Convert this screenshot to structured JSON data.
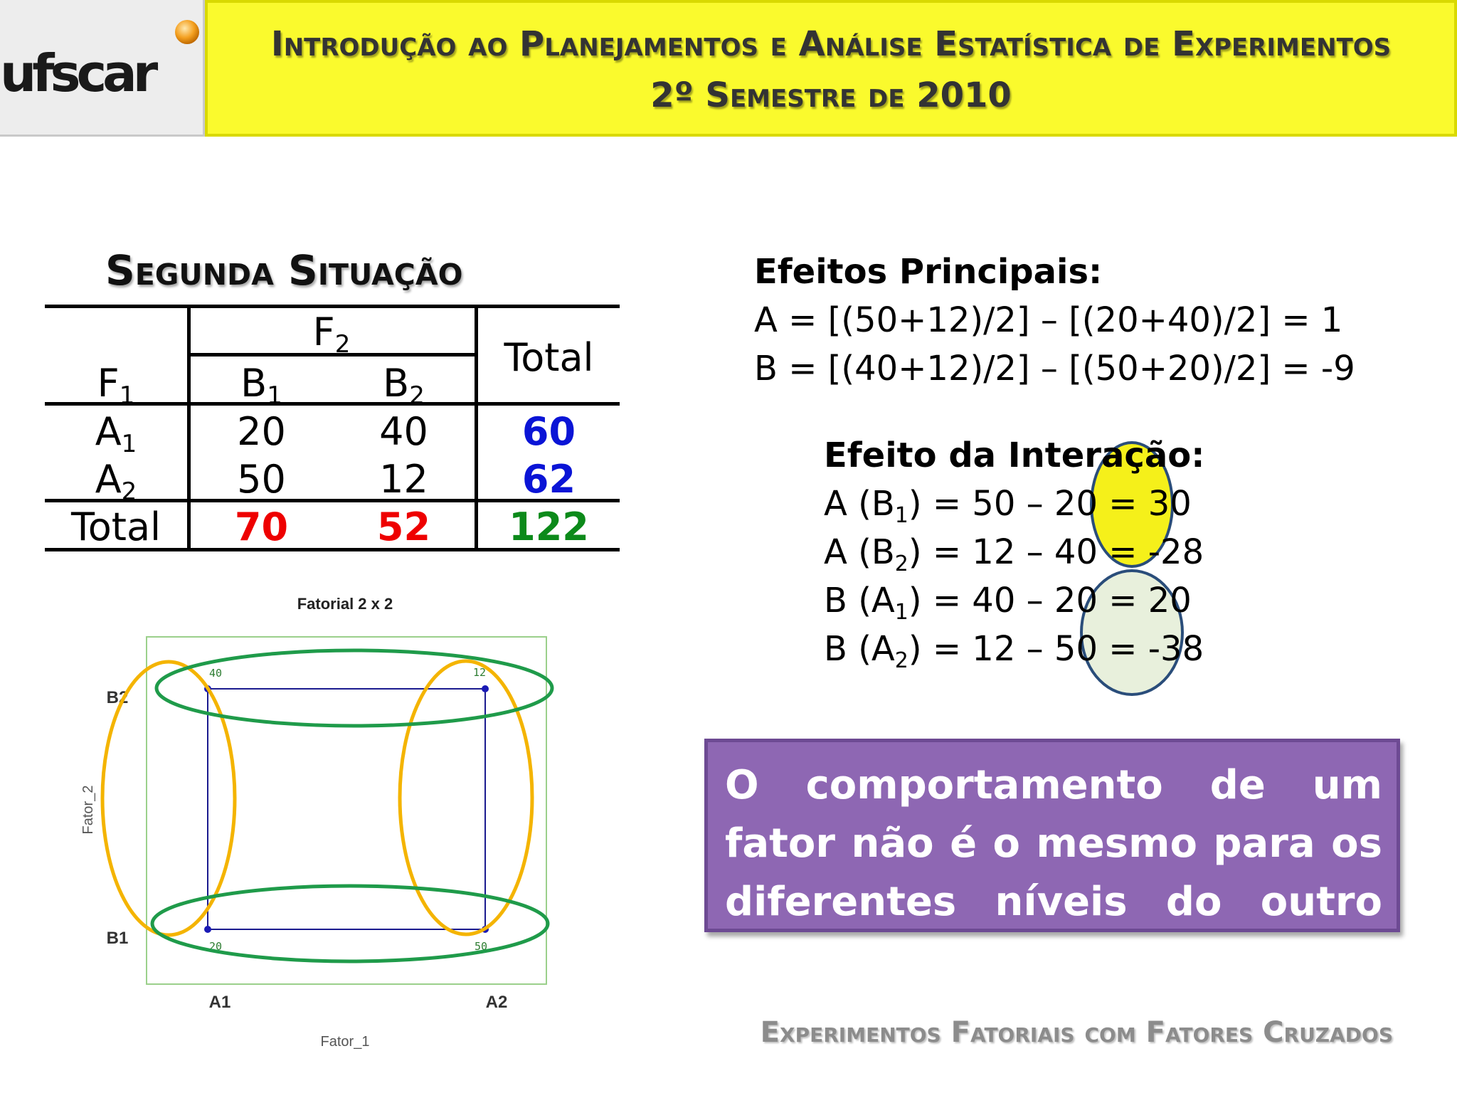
{
  "header": {
    "logo_text": "ufscar",
    "title_line1": "Introdução ao Planejamentos e Análise Estatística de Experimentos",
    "title_line2": "2º Semestre de 2010"
  },
  "section_title": "Segunda Situação",
  "table": {
    "factor2_label": "F",
    "factor2_sub": "2",
    "factor1_label": "F",
    "factor1_sub": "1",
    "total_label": "Total",
    "b1_label": "B",
    "b1_sub": "1",
    "b2_label": "B",
    "b2_sub": "2",
    "a1_label": "A",
    "a1_sub": "1",
    "a2_label": "A",
    "a2_sub": "2",
    "a1_b1": "20",
    "a1_b2": "40",
    "a1_total": "60",
    "a2_b1": "50",
    "a2_b2": "12",
    "a2_total": "62",
    "total_row_label": "Total",
    "total_b1": "70",
    "total_b2": "52",
    "grand_total": "122"
  },
  "main_effects": {
    "heading": "Efeitos Principais:",
    "line_a": "A = [(50+12)/2] – [(20+40)/2] = 1",
    "line_b": "B = [(40+12)/2] – [(50+20)/2] = -9"
  },
  "interaction": {
    "heading": "Efeito da Interação:",
    "rows": [
      {
        "pre": "A (B",
        "sub": "1",
        "post": ") = 50 – 20 = 30"
      },
      {
        "pre": "A (B",
        "sub": "2",
        "post": ") = 12 – 40 = -28"
      },
      {
        "pre": "B (A",
        "sub": "1",
        "post": ") = 40 – 20 = 20"
      },
      {
        "pre": "B (A",
        "sub": "2",
        "post": ") = 12 – 50 = -38"
      }
    ]
  },
  "conclusion": "O comportamento de um fator não é o mesmo para os diferentes níveis do outro fator.",
  "chart": {
    "title": "Fatorial 2 x 2",
    "xlabel": "Fator_1",
    "ylabel": "Fator_2",
    "x_ticks": [
      "A1",
      "A2"
    ],
    "y_ticks": [
      "B1",
      "B2"
    ],
    "point_labels": {
      "a1_b2": "40",
      "a2_b2": "12",
      "a1_b1": "20",
      "a2_b1": "50"
    }
  },
  "chart_data": {
    "type": "scatter",
    "title": "Fatorial 2 x 2",
    "xlabel": "Fator_1",
    "ylabel": "Fator_2",
    "categories_x": [
      "A1",
      "A2"
    ],
    "categories_y": [
      "B1",
      "B2"
    ],
    "points": [
      {
        "x": "A1",
        "y": "B1",
        "value": 20
      },
      {
        "x": "A2",
        "y": "B1",
        "value": 50
      },
      {
        "x": "A1",
        "y": "B2",
        "value": 40
      },
      {
        "x": "A2",
        "y": "B2",
        "value": 12
      }
    ]
  },
  "colors": {
    "title_bar": "#fafa2d",
    "highlight_yellow": "#f5f01a",
    "highlight_green": "#e8f0dc",
    "purple_box": "#8e67b3",
    "total_blue": "#0a14d6",
    "total_red": "#ee0000",
    "total_green": "#0c8a1a"
  },
  "footer": "Experimentos Fatoriais com Fatores Cruzados"
}
